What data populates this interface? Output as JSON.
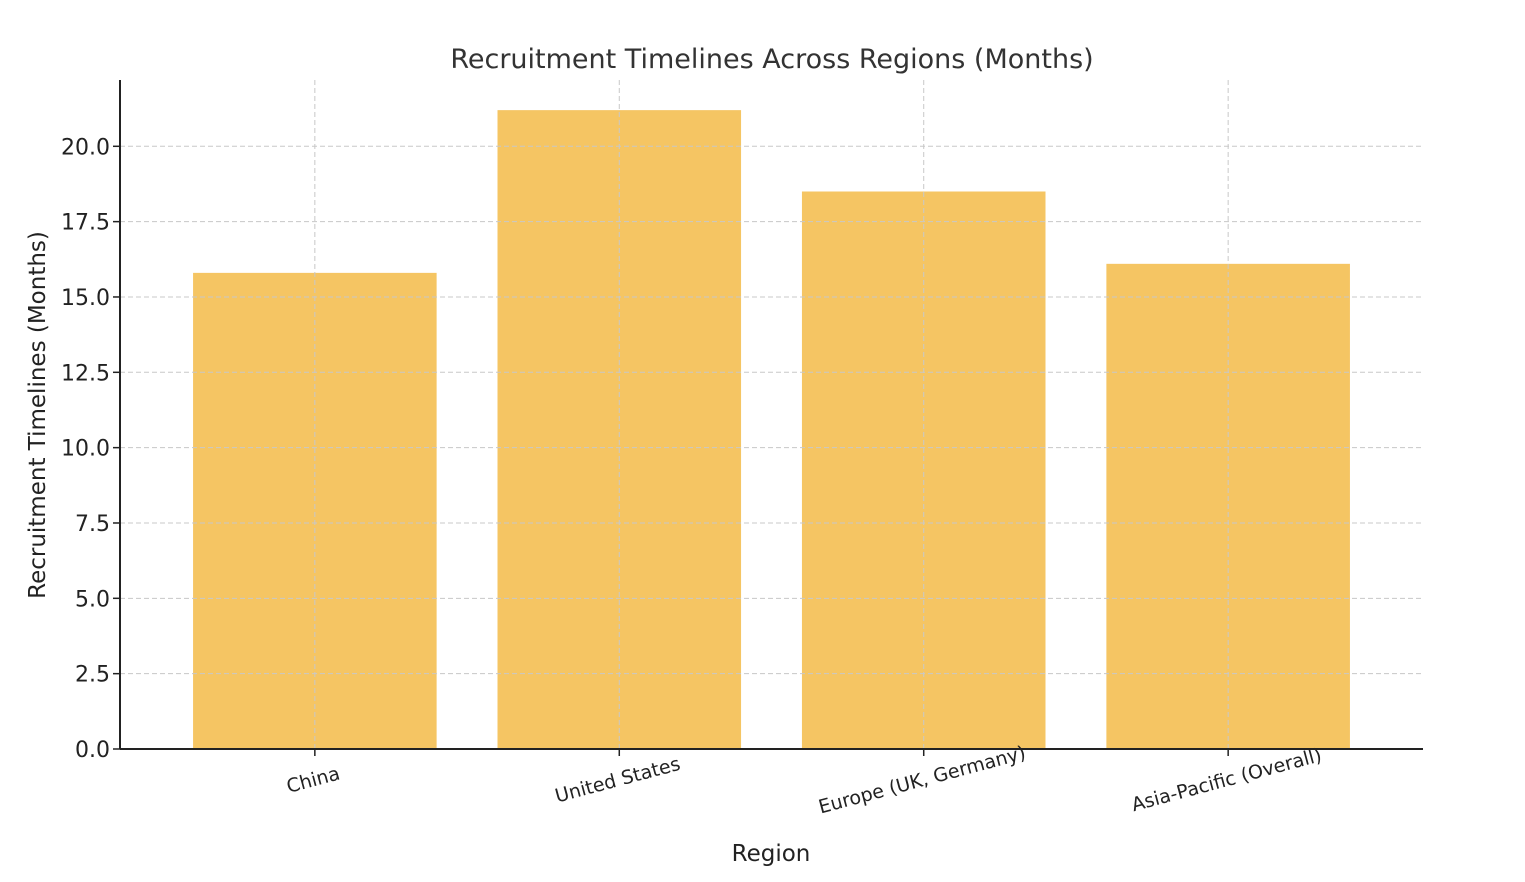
{
  "chart_data": {
    "type": "bar",
    "title": "Recruitment Timelines Across Regions (Months)",
    "xlabel": "Region",
    "ylabel": "Recruitment Timelines (Months)",
    "categories": [
      "China",
      "United States",
      "Europe (UK, Germany)",
      "Asia-Pacific (Overall)"
    ],
    "values": [
      15.8,
      21.2,
      18.5,
      16.1
    ],
    "ylim": [
      0,
      22.2
    ],
    "yticks": [
      0.0,
      2.5,
      5.0,
      7.5,
      10.0,
      12.5,
      15.0,
      17.5,
      20.0
    ],
    "ytick_labels": [
      "0.0",
      "2.5",
      "5.0",
      "7.5",
      "10.0",
      "12.5",
      "15.0",
      "17.5",
      "20.0"
    ],
    "grid": true,
    "bar_color": "#f5c563"
  }
}
